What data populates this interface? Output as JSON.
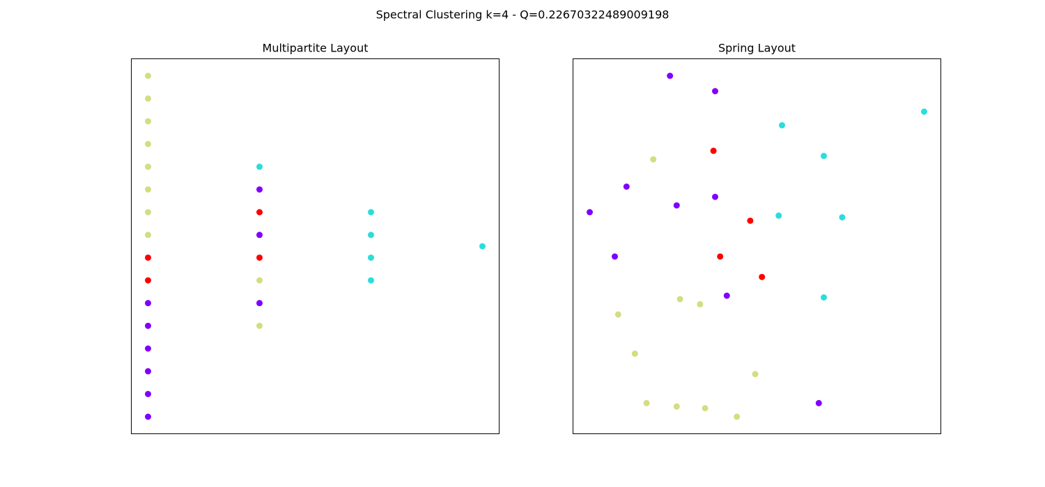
{
  "title": "Spectral Clustering k=4 - Q=0.22670322489009198",
  "chart_data": [
    {
      "type": "scatter",
      "title": "Multipartite Layout",
      "xlim": [
        -0.15,
        3.15
      ],
      "ylim": [
        -0.75,
        15.75
      ],
      "series": [
        {
          "color": "#d4dd80",
          "x": [
            0,
            0,
            0,
            0,
            0,
            0,
            0,
            0,
            1,
            1
          ],
          "y": [
            15,
            14,
            13,
            12,
            11,
            10,
            9,
            8,
            6,
            4
          ]
        },
        {
          "color": "#ff0000",
          "x": [
            0,
            0,
            1,
            1
          ],
          "y": [
            7,
            6,
            9,
            7
          ]
        },
        {
          "color": "#8000ff",
          "x": [
            0,
            0,
            0,
            0,
            0,
            0,
            1,
            1,
            1
          ],
          "y": [
            5,
            4,
            3,
            2,
            1,
            0,
            10,
            8,
            5
          ]
        },
        {
          "color": "#2adddd",
          "x": [
            1,
            2,
            2,
            2,
            2,
            3
          ],
          "y": [
            11,
            9,
            8,
            7,
            6,
            7.5
          ]
        }
      ]
    },
    {
      "type": "scatter",
      "title": "Spring Layout",
      "xlim": [
        -1.1,
        1.1
      ],
      "ylim": [
        -1.1,
        1.1
      ],
      "series": [
        {
          "color": "#d4dd80",
          "x": [
            -0.62,
            -0.46,
            -0.34,
            -0.83,
            -0.73,
            -0.01,
            -0.66,
            -0.48,
            -0.31,
            -0.12
          ],
          "y": [
            0.51,
            -0.31,
            -0.34,
            -0.4,
            -0.63,
            -0.75,
            -0.92,
            -0.94,
            -0.95,
            -1.0
          ]
        },
        {
          "color": "#ff0000",
          "x": [
            -0.26,
            -0.04,
            -0.22,
            0.03
          ],
          "y": [
            0.56,
            0.15,
            -0.06,
            -0.18
          ]
        },
        {
          "color": "#8000ff",
          "x": [
            -0.52,
            -0.25,
            -0.78,
            -1.0,
            -0.48,
            -0.25,
            -0.85,
            -0.18,
            0.37
          ],
          "y": [
            1.0,
            0.91,
            0.35,
            0.2,
            0.24,
            0.29,
            -0.06,
            -0.29,
            -0.92
          ]
        },
        {
          "color": "#2adddd",
          "x": [
            1.0,
            0.15,
            0.4,
            0.13,
            0.51,
            0.4
          ],
          "y": [
            0.79,
            0.71,
            0.53,
            0.18,
            0.17,
            -0.3
          ]
        }
      ]
    }
  ]
}
